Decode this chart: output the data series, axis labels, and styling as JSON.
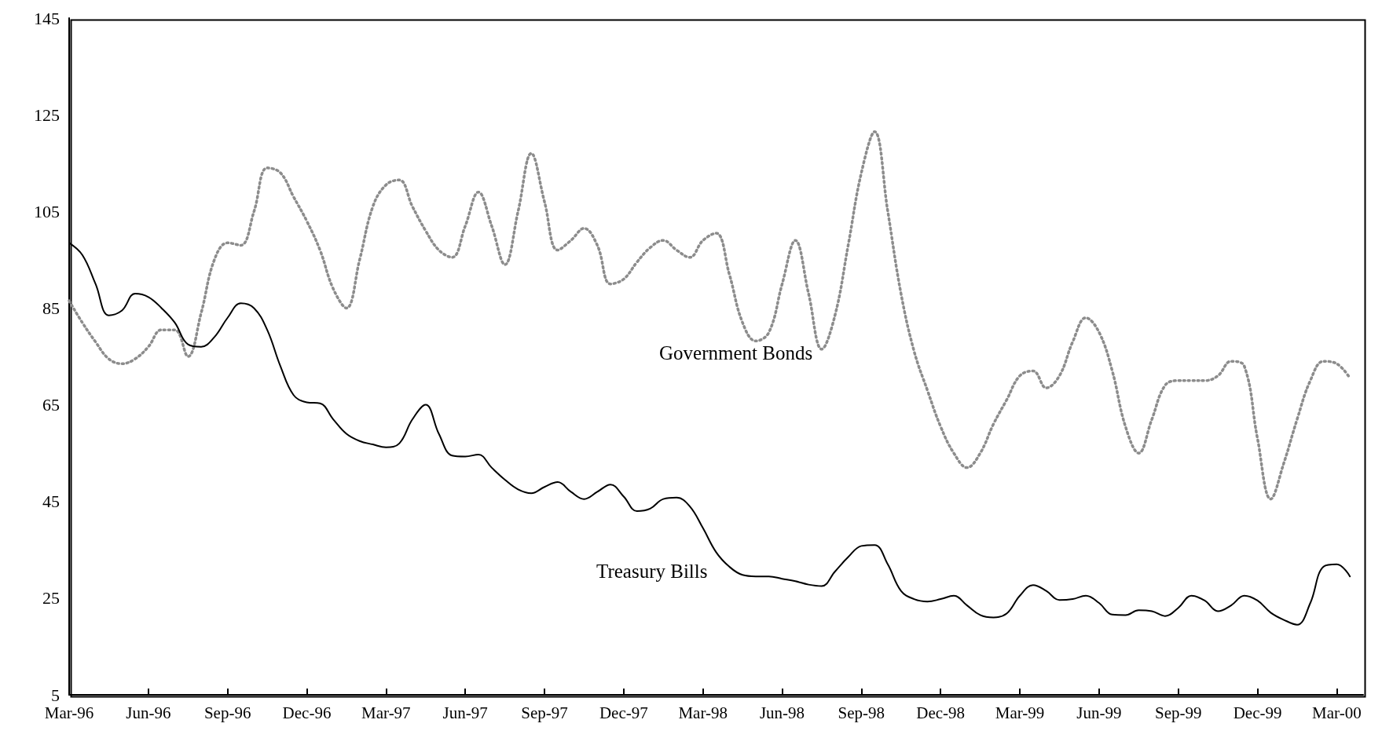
{
  "chart_data": {
    "type": "line",
    "categories": [
      "Mar-96",
      null,
      null,
      null,
      null,
      null,
      "Jun-96",
      null,
      null,
      null,
      null,
      null,
      "Sep-96",
      null,
      null,
      null,
      null,
      null,
      "Dec-96",
      null,
      null,
      null,
      null,
      null,
      "Mar-97",
      null,
      null,
      null,
      null,
      null,
      "Jun-97",
      null,
      null,
      null,
      null,
      null,
      "Sep-97",
      null,
      null,
      null,
      null,
      null,
      "Dec-97",
      null,
      null,
      null,
      null,
      null,
      "Mar-98",
      null,
      null,
      null,
      null,
      null,
      "Jun-98",
      null,
      null,
      null,
      null,
      null,
      "Sep-98",
      null,
      null,
      null,
      null,
      null,
      "Dec-98",
      null,
      null,
      null,
      null,
      null,
      "Mar-99",
      null,
      null,
      null,
      null,
      null,
      "Jun-99",
      null,
      null,
      null,
      null,
      null,
      "Sep-99",
      null,
      null,
      null,
      null,
      null,
      "Dec-99",
      null,
      null,
      null,
      null,
      null,
      "Mar-00",
      null,
      null
    ],
    "series": [
      {
        "name": "Government Bonds",
        "color": "#8c8c8c",
        "line_style": "dotted",
        "values": [
          86.5,
          82,
          78,
          74.5,
          73.5,
          74.5,
          77,
          80.5,
          80.5,
          75,
          84,
          95,
          98.5,
          98,
          105,
          114,
          113,
          108,
          103,
          97,
          89,
          85,
          95,
          106,
          110.5,
          111.5,
          106,
          101,
          97,
          95.5,
          102,
          109,
          102,
          94,
          105,
          117,
          107,
          97,
          99,
          101.5,
          98,
          90,
          91,
          94.5,
          97.5,
          99,
          97,
          95.5,
          99,
          100.5,
          92,
          82,
          78.2,
          80,
          90,
          99,
          88,
          76.5,
          83.5,
          98,
          113,
          121.5,
          105,
          88,
          76,
          68,
          60.5,
          55,
          52,
          55,
          61,
          66,
          71,
          72,
          68.5,
          71,
          78,
          83,
          80,
          72,
          60.5,
          55,
          62,
          69,
          70,
          70,
          70,
          71,
          74,
          73,
          58,
          45.5,
          53,
          62,
          70,
          74,
          73.5,
          70.5,
          null
        ]
      },
      {
        "name": "Treasury Bills",
        "color": "#000000",
        "line_style": "solid",
        "values": [
          98.5,
          96,
          90,
          83.5,
          84.5,
          88,
          87.3,
          85,
          82,
          77.5,
          77,
          79,
          83,
          86,
          85,
          80.5,
          73,
          67,
          65.5,
          65.3,
          62,
          59,
          57.5,
          56.8,
          56.2,
          57,
          62,
          65,
          59,
          54.5,
          54.3,
          54.7,
          52,
          49.5,
          47.5,
          46.7,
          48,
          49,
          47,
          45.5,
          47,
          48.5,
          46,
          43,
          43.5,
          45.5,
          45.8,
          44,
          39.5,
          34.5,
          31.5,
          29.8,
          29.5,
          29.5,
          29,
          28.5,
          27.8,
          27.5,
          30.5,
          33.5,
          35.8,
          36,
          32,
          26.5,
          24.8,
          24.3,
          24.8,
          25.5,
          23.5,
          21.5,
          21,
          21.8,
          25.5,
          27.7,
          26.5,
          24.6,
          24.8,
          25.5,
          24,
          21.6,
          21.5,
          22.5,
          22.3,
          21.3,
          23,
          25.5,
          24.5,
          22.3,
          23.5,
          25.5,
          24.5,
          22,
          20.5,
          19.5,
          24,
          31.5,
          32,
          29.5,
          null
        ]
      }
    ],
    "ylim": [
      5,
      145
    ],
    "yticks": [
      5,
      25,
      45,
      65,
      85,
      105,
      125,
      145
    ],
    "grid": false,
    "marker": "none"
  }
}
